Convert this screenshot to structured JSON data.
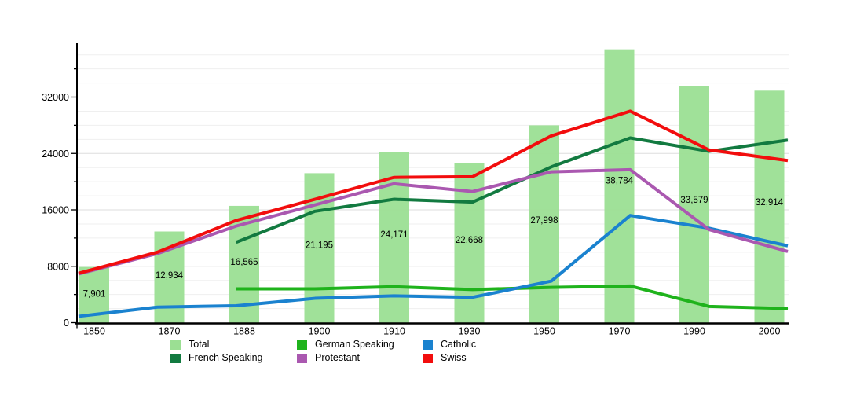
{
  "chart_data": {
    "type": "bar+line",
    "title": "",
    "categories": [
      "1850",
      "1870",
      "1888",
      "1900",
      "1910",
      "1930",
      "1950",
      "1970",
      "1990",
      "2000"
    ],
    "bar_series": {
      "name": "Total",
      "color": "#9bdf93",
      "values": [
        7901,
        12934,
        16565,
        21195,
        24171,
        22668,
        27998,
        38784,
        33579,
        32914
      ],
      "value_labels": [
        "7,901",
        "12,934",
        "16,565",
        "21,195",
        "24,171",
        "22,668",
        "27,998",
        "38,784",
        "33,579",
        "32,914"
      ]
    },
    "line_series": [
      {
        "name": "French Speaking",
        "color": "#127a40",
        "values": [
          null,
          null,
          11400,
          15800,
          17500,
          17100,
          22100,
          26200,
          24300,
          25900
        ]
      },
      {
        "name": "German Speaking",
        "color": "#1fb31c",
        "values": [
          null,
          null,
          4800,
          4800,
          5100,
          4700,
          5000,
          5200,
          2300,
          2000
        ]
      },
      {
        "name": "Catholic",
        "color": "#1a82cf",
        "values": [
          900,
          2200,
          2400,
          3450,
          3800,
          3600,
          5900,
          15200,
          13400,
          10900
        ]
      },
      {
        "name": "Protestant",
        "color": "#aa58b0",
        "values": [
          6900,
          9800,
          13700,
          16700,
          19700,
          18600,
          21400,
          21700,
          13200,
          10100
        ]
      },
      {
        "name": "Swiss",
        "color": "#f20d0d",
        "values": [
          7000,
          10000,
          14500,
          17500,
          20600,
          20700,
          26500,
          30000,
          24500,
          23000
        ]
      }
    ],
    "y_axis": {
      "tick_values": [
        0,
        8000,
        16000,
        24000,
        32000
      ],
      "tick_labels": [
        "0",
        "8000",
        "16000",
        "24000",
        "32000"
      ],
      "minor_step": 2000,
      "max": 39300,
      "grid": true
    },
    "x_axis": {
      "labels": [
        "1850",
        "1870",
        "1888",
        "1900",
        "1910",
        "1930",
        "1950",
        "1970",
        "1990",
        "2000"
      ]
    },
    "legend": {
      "position": "bottom",
      "items": [
        {
          "label": "Total",
          "color": "#9bdf93"
        },
        {
          "label": "French Speaking",
          "color": "#127a40"
        },
        {
          "label": "German Speaking",
          "color": "#1fb31c"
        },
        {
          "label": "Protestant",
          "color": "#aa58b0"
        },
        {
          "label": "Catholic",
          "color": "#1a82cf"
        },
        {
          "label": "Swiss",
          "color": "#f20d0d"
        }
      ]
    }
  }
}
